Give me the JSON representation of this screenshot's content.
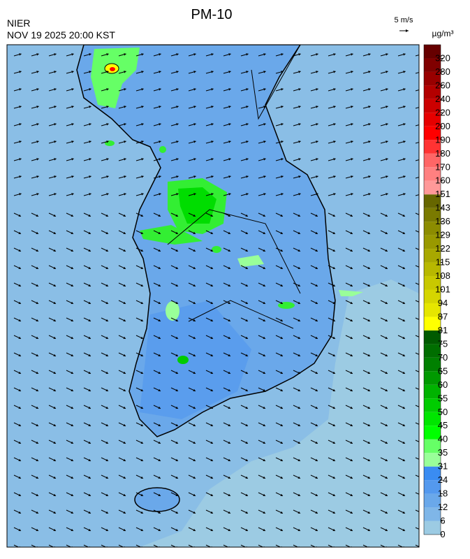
{
  "header": {
    "title": "PM-10",
    "source": "NIER",
    "timestamp": "NOV 19 2025 20:00 KST"
  },
  "wind_scale": {
    "label": "5 m/s"
  },
  "colorbar": {
    "unit": "µg/m³",
    "ticks": [
      0,
      6,
      12,
      18,
      24,
      31,
      35,
      40,
      45,
      50,
      55,
      60,
      65,
      70,
      75,
      81,
      87,
      94,
      101,
      108,
      115,
      122,
      129,
      136,
      143,
      151,
      160,
      170,
      180,
      190,
      200,
      220,
      240,
      260,
      280,
      320
    ],
    "colors": [
      "#9ccbe3",
      "#7fb6e8",
      "#6aa8ea",
      "#5499ee",
      "#3a8cf2",
      "#99ff99",
      "#66ff66",
      "#00ff00",
      "#00e600",
      "#00cc00",
      "#00b300",
      "#009900",
      "#008000",
      "#006e00",
      "#005a00",
      "#ffff00",
      "#e6e600",
      "#d6d600",
      "#c8c800",
      "#b8b800",
      "#a8a800",
      "#999900",
      "#8c8c00",
      "#7a7a00",
      "#666600",
      "#ff9999",
      "#ff8080",
      "#ff6666",
      "#ff3333",
      "#ff0000",
      "#e60000",
      "#cc0000",
      "#b30000",
      "#990000",
      "#800000",
      "#660000"
    ]
  }
}
